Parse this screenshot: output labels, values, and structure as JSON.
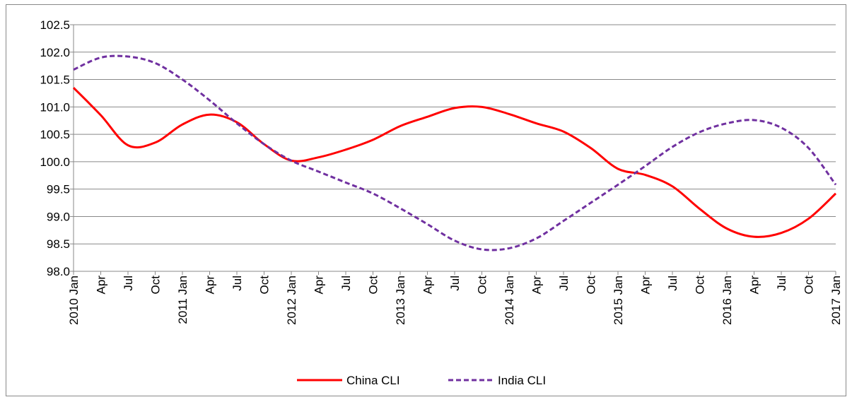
{
  "chart_data": {
    "type": "line",
    "title": "",
    "xlabel": "",
    "ylabel": "",
    "ylim": [
      98.0,
      102.5
    ],
    "y_ticks": [
      "98.0",
      "98.5",
      "99.0",
      "99.5",
      "100.0",
      "100.5",
      "101.0",
      "101.5",
      "102.0",
      "102.5"
    ],
    "x_ticks": [
      "2010 Jan",
      "Apr",
      "Jul",
      "Oct",
      "2011 Jan",
      "Apr",
      "Jul",
      "Oct",
      "2012 Jan",
      "Apr",
      "Jul",
      "Oct",
      "2013 Jan",
      "Apr",
      "Jul",
      "Oct",
      "2014 Jan",
      "Apr",
      "Jul",
      "Oct",
      "2015 Jan",
      "Apr",
      "Jul",
      "Oct",
      "2016 Jan",
      "Apr",
      "Jul",
      "Oct",
      "2017 Jan"
    ],
    "grid": "horizontal",
    "legend": "bottom",
    "x": [
      "2010 Jan",
      "2010 Apr",
      "2010 Jul",
      "2010 Oct",
      "2011 Jan",
      "2011 Apr",
      "2011 Jul",
      "2011 Oct",
      "2012 Jan",
      "2012 Apr",
      "2012 Jul",
      "2012 Oct",
      "2013 Jan",
      "2013 Apr",
      "2013 Jul",
      "2013 Oct",
      "2014 Jan",
      "2014 Apr",
      "2014 Jul",
      "2014 Oct",
      "2015 Jan",
      "2015 Apr",
      "2015 Jul",
      "2015 Oct",
      "2016 Jan",
      "2016 Apr",
      "2016 Jul",
      "2016 Oct",
      "2017 Jan"
    ],
    "series": [
      {
        "name": "China CLI",
        "color": "#ff0000",
        "style": "solid",
        "values": [
          101.35,
          100.85,
          100.3,
          100.35,
          100.68,
          100.86,
          100.72,
          100.32,
          100.02,
          100.08,
          100.22,
          100.4,
          100.65,
          100.82,
          100.98,
          101.0,
          100.87,
          100.7,
          100.55,
          100.25,
          99.87,
          99.76,
          99.55,
          99.14,
          98.78,
          98.63,
          98.7,
          98.96,
          99.42
        ]
      },
      {
        "name": "India CLI",
        "color": "#7030a0",
        "style": "dashed",
        "values": [
          101.68,
          101.9,
          101.92,
          101.8,
          101.5,
          101.12,
          100.7,
          100.32,
          100.02,
          99.82,
          99.62,
          99.42,
          99.15,
          98.86,
          98.56,
          98.4,
          98.42,
          98.6,
          98.92,
          99.25,
          99.58,
          99.92,
          100.27,
          100.54,
          100.7,
          100.76,
          100.62,
          100.25,
          99.58
        ]
      }
    ]
  }
}
